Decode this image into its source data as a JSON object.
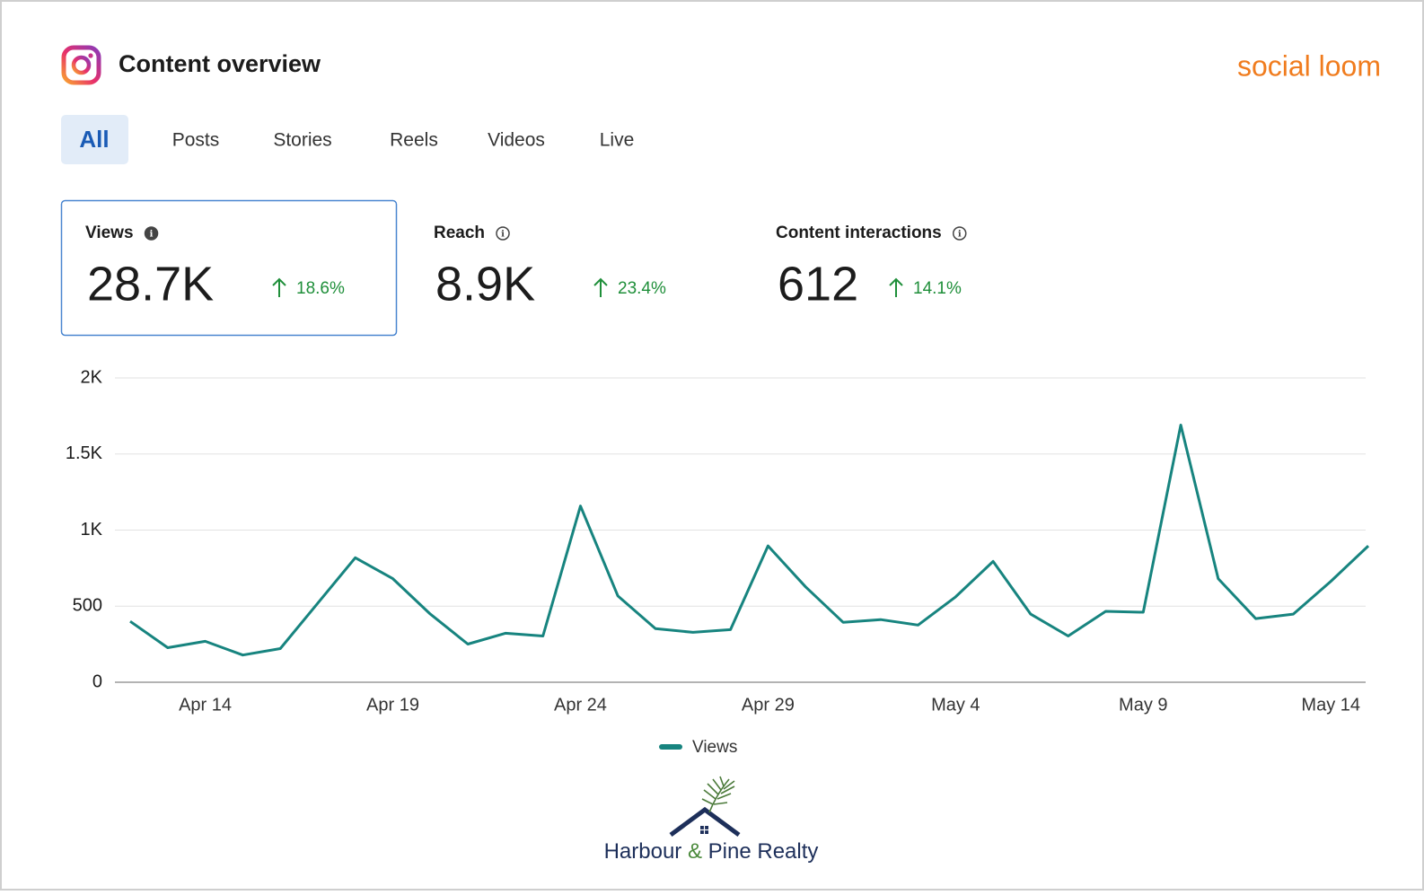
{
  "header": {
    "title": "Content overview",
    "brand": "social loom"
  },
  "tabs": [
    "All",
    "Posts",
    "Stories",
    "Reels",
    "Videos",
    "Live"
  ],
  "metrics": [
    {
      "name": "Views",
      "value": "28.7K",
      "change": "18.6%"
    },
    {
      "name": "Reach",
      "value": "8.9K",
      "change": "23.4%"
    },
    {
      "name": "Content interactions",
      "value": "612",
      "change": "14.1%"
    }
  ],
  "chart_data": {
    "type": "line",
    "categories": [
      null,
      null,
      "Apr 14",
      null,
      null,
      null,
      null,
      "Apr 19",
      null,
      null,
      null,
      null,
      "Apr 24",
      null,
      null,
      null,
      null,
      "Apr 29",
      null,
      null,
      null,
      null,
      "May 4",
      null,
      null,
      null,
      null,
      "May 9",
      null,
      null,
      null,
      null,
      "May 14",
      null
    ],
    "series": [
      {
        "name": "Views",
        "color": "#17847f",
        "values": [
          400,
          227,
          269,
          179,
          221,
          520,
          818,
          681,
          448,
          251,
          322,
          304,
          1158,
          567,
          352,
          328,
          346,
          896,
          627,
          394,
          412,
          376,
          561,
          794,
          448,
          304,
          466,
          460,
          1690,
          681,
          418,
          448,
          663,
          896
        ]
      }
    ],
    "ylim": [
      0,
      2000
    ],
    "yticks": [
      0,
      500,
      {
        "value": 1000,
        "label": "1K"
      },
      {
        "value": 1500,
        "label": "1.5K"
      },
      {
        "value": 2000,
        "label": "2K"
      }
    ],
    "grid": true
  },
  "footer": {
    "logo_text": [
      "Harbour",
      "&",
      "Pine Realty"
    ]
  }
}
